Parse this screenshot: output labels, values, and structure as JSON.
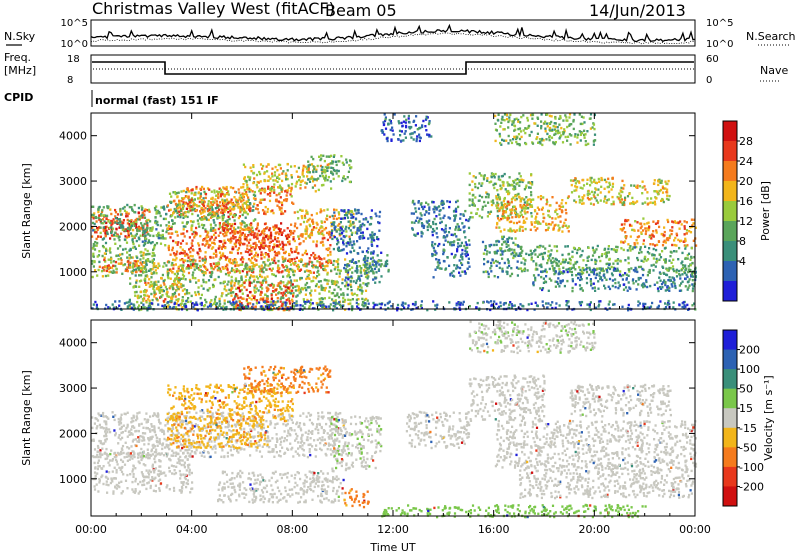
{
  "header": {
    "site": "Christmas Valley West (fitACF)",
    "beam": "Beam 05",
    "date": "14/Jun/2013"
  },
  "summary_panels": {
    "nsky_label": "N.Sky",
    "nsearch_label": "N.Search",
    "freq_label_1": "Freq.",
    "freq_label_2": "[MHz]",
    "nave_label": "Nave",
    "cpid_label": "CPID",
    "cpid_text": "normal (fast) 151 IF",
    "noise_ticks": [
      "10^5",
      "10^0"
    ],
    "freq_ticks": [
      "18",
      "8"
    ],
    "nave_ticks": [
      "60",
      "0"
    ]
  },
  "chart_data": [
    {
      "type": "heatmap",
      "title": "",
      "xlabel": "",
      "ylabel": "Slant Range [km]",
      "xlim": [
        0,
        24
      ],
      "ylim": [
        180,
        4500
      ],
      "x_ticks": [
        "00:00",
        "04:00",
        "08:00",
        "12:00",
        "16:00",
        "20:00",
        "00:00"
      ],
      "y_ticks": [
        "1000",
        "2000",
        "3000",
        "4000"
      ],
      "colorbar": {
        "label": "Power [dB]",
        "ticks": [
          "4",
          "8",
          "12",
          "16",
          "20",
          "24",
          "28"
        ],
        "colors": [
          "#1f1fd8",
          "#2d62b3",
          "#3a8f7a",
          "#5aa55a",
          "#9acb3c",
          "#f2b51a",
          "#f57b1d",
          "#e8381c",
          "#d01010"
        ]
      },
      "regions": [
        {
          "t0": 0.0,
          "t1": 2.3,
          "r0": 1750,
          "r1": 2400,
          "p": 25
        },
        {
          "t0": 0.2,
          "t1": 2.1,
          "r0": 1950,
          "r1": 2200,
          "p": 27
        },
        {
          "t0": 0.0,
          "t1": 3.0,
          "r0": 1500,
          "r1": 2500,
          "p": 12
        },
        {
          "t0": 0.0,
          "t1": 2.5,
          "r0": 900,
          "r1": 1500,
          "p": 14
        },
        {
          "t0": 0.3,
          "t1": 2.0,
          "r0": 1000,
          "r1": 1300,
          "p": 23
        },
        {
          "t0": 2.0,
          "t1": 3.6,
          "r0": 350,
          "r1": 900,
          "p": 21
        },
        {
          "t0": 3.0,
          "t1": 6.0,
          "r0": 2200,
          "r1": 2600,
          "p": 24
        },
        {
          "t0": 3.0,
          "t1": 6.5,
          "r0": 1900,
          "r1": 2800,
          "p": 14
        },
        {
          "t0": 3.5,
          "t1": 8.0,
          "r0": 2300,
          "r1": 2900,
          "p": 22
        },
        {
          "t0": 6.0,
          "t1": 9.5,
          "r0": 2800,
          "r1": 3400,
          "p": 18
        },
        {
          "t0": 8.5,
          "t1": 10.3,
          "r0": 3000,
          "r1": 3600,
          "p": 12
        },
        {
          "t0": 3.0,
          "t1": 9.5,
          "r0": 1000,
          "r1": 2000,
          "p": 24
        },
        {
          "t0": 5.0,
          "t1": 8.0,
          "r0": 1500,
          "r1": 2100,
          "p": 25
        },
        {
          "t0": 8.0,
          "t1": 10.5,
          "r0": 1800,
          "r1": 2400,
          "p": 20
        },
        {
          "t0": 1.5,
          "t1": 11.0,
          "r0": 180,
          "r1": 1300,
          "p": 15
        },
        {
          "t0": 5.5,
          "t1": 8.0,
          "r0": 180,
          "r1": 800,
          "p": 25
        },
        {
          "t0": 9.5,
          "t1": 11.5,
          "r0": 1400,
          "r1": 2400,
          "p": 6
        },
        {
          "t0": 10.0,
          "t1": 11.5,
          "r0": 700,
          "r1": 1300,
          "p": 8
        },
        {
          "t0": 10.8,
          "t1": 11.8,
          "r0": 1000,
          "r1": 1400,
          "p": 10
        },
        {
          "t0": 11.5,
          "t1": 13.5,
          "r0": 3900,
          "r1": 4500,
          "p": 6
        },
        {
          "t0": 12.7,
          "t1": 15.0,
          "r0": 1800,
          "r1": 2600,
          "p": 8
        },
        {
          "t0": 13.5,
          "t1": 15.0,
          "r0": 900,
          "r1": 1800,
          "p": 7
        },
        {
          "t0": 15.0,
          "t1": 17.5,
          "r0": 2200,
          "r1": 3200,
          "p": 14
        },
        {
          "t0": 15.5,
          "t1": 17.0,
          "r0": 900,
          "r1": 1800,
          "p": 10
        },
        {
          "t0": 16.0,
          "t1": 19.0,
          "r0": 1900,
          "r1": 2700,
          "p": 20
        },
        {
          "t0": 19.0,
          "t1": 23.0,
          "r0": 2500,
          "r1": 3100,
          "p": 18
        },
        {
          "t0": 21.0,
          "t1": 24.0,
          "r0": 1600,
          "r1": 2200,
          "p": 22
        },
        {
          "t0": 17.0,
          "t1": 24.0,
          "r0": 1000,
          "r1": 1600,
          "p": 12
        },
        {
          "t0": 17.5,
          "t1": 24.0,
          "r0": 600,
          "r1": 1100,
          "p": 8
        },
        {
          "t0": 16.0,
          "t1": 20.0,
          "r0": 3800,
          "r1": 4500,
          "p": 14
        },
        {
          "t0": 0.0,
          "t1": 24.0,
          "r0": 180,
          "r1": 380,
          "p": 6
        }
      ]
    },
    {
      "type": "heatmap",
      "title": "",
      "xlabel": "Time UT",
      "ylabel": "Slant Range [km]",
      "xlim": [
        0,
        24
      ],
      "ylim": [
        180,
        4500
      ],
      "x_ticks": [
        "00:00",
        "04:00",
        "08:00",
        "12:00",
        "16:00",
        "20:00",
        "00:00"
      ],
      "y_ticks": [
        "1000",
        "2000",
        "3000",
        "4000"
      ],
      "colorbar": {
        "label": "Velocity [m s⁻¹]",
        "ticks": [
          "200",
          "100",
          "50",
          "15",
          "-15",
          "-50",
          "-100",
          "-200"
        ],
        "colors": [
          "#1f1fd8",
          "#2d62b3",
          "#3a8f7a",
          "#7ac74a",
          "#c8c8c0",
          "#f2b51a",
          "#f57b1d",
          "#e8381c",
          "#d01010"
        ]
      },
      "regions": [
        {
          "t0": 0.0,
          "t1": 10.0,
          "r0": 1500,
          "r1": 2500,
          "v": 0
        },
        {
          "t0": 0.0,
          "t1": 4.0,
          "r0": 700,
          "r1": 1600,
          "v": 0
        },
        {
          "t0": 3.0,
          "t1": 8.0,
          "r0": 2300,
          "r1": 3100,
          "v": -40
        },
        {
          "t0": 6.0,
          "t1": 9.5,
          "r0": 2900,
          "r1": 3500,
          "v": -60
        },
        {
          "t0": 5.0,
          "t1": 10.0,
          "r0": 500,
          "r1": 1200,
          "v": 0
        },
        {
          "t0": 9.5,
          "t1": 11.5,
          "r0": 1200,
          "r1": 2400,
          "v": 5
        },
        {
          "t0": 10.0,
          "t1": 11.0,
          "r0": 400,
          "r1": 800,
          "v": -60
        },
        {
          "t0": 12.5,
          "t1": 15.0,
          "r0": 1700,
          "r1": 2500,
          "v": 0
        },
        {
          "t0": 15.0,
          "t1": 18.0,
          "r0": 2300,
          "r1": 3300,
          "v": 0
        },
        {
          "t0": 16.0,
          "t1": 24.0,
          "r0": 1200,
          "r1": 2300,
          "v": 0
        },
        {
          "t0": 19.0,
          "t1": 23.0,
          "r0": 2400,
          "r1": 3100,
          "v": 0
        },
        {
          "t0": 17.0,
          "t1": 24.0,
          "r0": 600,
          "r1": 1200,
          "v": 0
        },
        {
          "t0": 3.0,
          "t1": 7.0,
          "r0": 1700,
          "r1": 2400,
          "v": -40
        },
        {
          "t0": 11.5,
          "t1": 22.0,
          "r0": 180,
          "r1": 450,
          "v": 35
        },
        {
          "t0": 15.0,
          "t1": 20.0,
          "r0": 3800,
          "r1": 4500,
          "v": 5
        }
      ]
    }
  ]
}
